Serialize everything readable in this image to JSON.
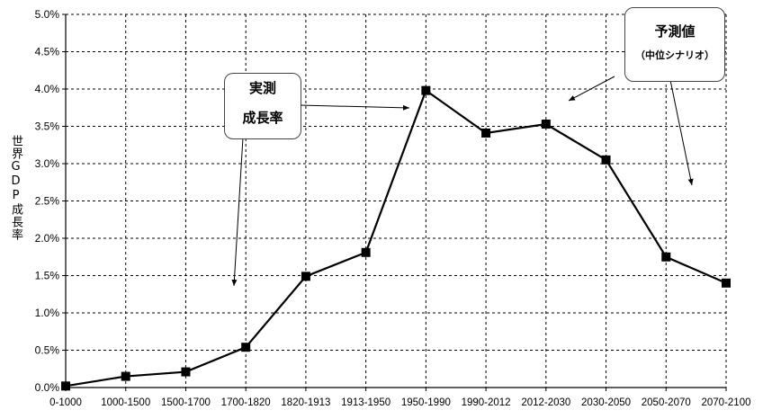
{
  "chart_data": {
    "type": "line",
    "categories": [
      "0-1000",
      "1000-1500",
      "1500-1700",
      "1700-1820",
      "1820-1913",
      "1913-1950",
      "1950-1990",
      "1990-2012",
      "2012-2030",
      "2030-2050",
      "2050-2070",
      "2070-2100"
    ],
    "series": [
      {
        "values": [
          0.02,
          0.15,
          0.21,
          0.54,
          1.49,
          1.81,
          3.98,
          3.41,
          3.53,
          3.05,
          1.75,
          1.4
        ]
      }
    ],
    "ylabel": "世界GDP成長率",
    "yticks": [
      "0.0%",
      "0.5%",
      "1.0%",
      "1.5%",
      "2.0%",
      "2.5%",
      "3.0%",
      "3.5%",
      "4.0%",
      "4.5%",
      "5.0%"
    ],
    "ylim": [
      0,
      5
    ],
    "grid": true,
    "line_color": "#000000",
    "marker": "square",
    "annotations": {
      "actual": {
        "line1": "実測",
        "line2": "成長率"
      },
      "forecast": {
        "line1": "予測値",
        "line2": "（中位シナリオ）"
      }
    }
  }
}
